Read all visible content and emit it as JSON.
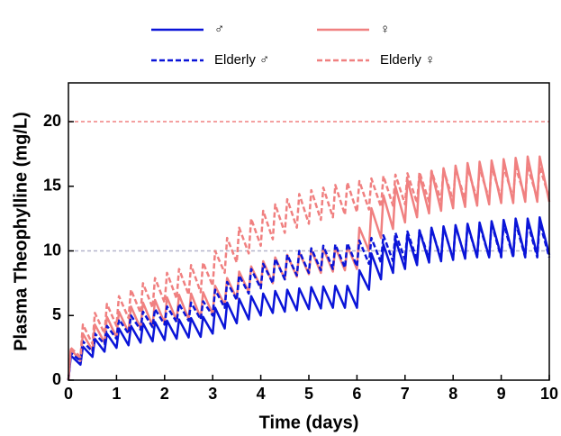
{
  "chart_data": {
    "type": "line",
    "xlabel": "Time (days)",
    "ylabel": "Plasma Theophylline (mg/L)",
    "xlim": [
      0,
      10
    ],
    "ylim": [
      0,
      23
    ],
    "xticks": [
      0,
      1,
      2,
      3,
      4,
      5,
      6,
      7,
      8,
      9,
      10
    ],
    "yticks": [
      0,
      5,
      10,
      15,
      20
    ],
    "reference_lines": [
      {
        "value": 20,
        "color": "#f08080"
      },
      {
        "value": 10,
        "color": "#b4b4cc"
      }
    ],
    "x": [
      0,
      0.05,
      0.25,
      0.3,
      0.5,
      0.55,
      0.75,
      0.8,
      1,
      1.05,
      1.25,
      1.3,
      1.5,
      1.55,
      1.75,
      1.8,
      2,
      2.05,
      2.25,
      2.3,
      2.5,
      2.55,
      2.75,
      2.8,
      3,
      3.05,
      3.25,
      3.3,
      3.5,
      3.55,
      3.75,
      3.8,
      4,
      4.05,
      4.25,
      4.3,
      4.5,
      4.55,
      4.75,
      4.8,
      5,
      5.05,
      5.25,
      5.3,
      5.5,
      5.55,
      5.75,
      5.8,
      6,
      6.05,
      6.25,
      6.3,
      6.5,
      6.55,
      6.75,
      6.8,
      7,
      7.05,
      7.25,
      7.3,
      7.5,
      7.55,
      7.75,
      7.8,
      8,
      8.05,
      8.25,
      8.3,
      8.5,
      8.55,
      8.75,
      8.8,
      9,
      9.05,
      9.25,
      9.3,
      9.5,
      9.55,
      9.75,
      9.8,
      10
    ],
    "series": [
      {
        "name": "♂",
        "color": "#0a14d8",
        "dash": false,
        "values": [
          0,
          1.9,
          1.2,
          2.6,
          1.8,
          3.2,
          2.2,
          3.6,
          2.5,
          4.0,
          2.7,
          4.2,
          2.9,
          4.4,
          3.0,
          4.5,
          3.1,
          4.6,
          3.2,
          4.7,
          3.3,
          4.8,
          3.35,
          4.9,
          3.6,
          5.6,
          4.0,
          6.0,
          4.4,
          6.3,
          4.7,
          6.5,
          5.0,
          6.7,
          5.2,
          6.9,
          5.3,
          7.0,
          5.4,
          7.1,
          5.5,
          7.2,
          5.55,
          7.25,
          5.6,
          7.3,
          5.6,
          7.3,
          5.6,
          8.5,
          7.0,
          9.8,
          7.8,
          10.5,
          8.3,
          10.9,
          8.6,
          11.3,
          8.9,
          11.6,
          9.1,
          11.8,
          9.2,
          11.9,
          9.3,
          12.0,
          9.4,
          12.1,
          9.5,
          12.2,
          9.5,
          12.3,
          9.6,
          12.4,
          9.6,
          12.5,
          9.6,
          12.5,
          9.7,
          12.6,
          9.7
        ]
      },
      {
        "name": "♀",
        "color": "#f08080",
        "dash": false,
        "values": [
          0,
          2.4,
          1.5,
          3.6,
          2.3,
          4.3,
          2.9,
          4.9,
          3.3,
          5.3,
          3.7,
          5.7,
          4.0,
          6.0,
          4.2,
          6.2,
          4.4,
          6.4,
          4.6,
          6.6,
          4.7,
          6.7,
          4.8,
          6.8,
          5.1,
          7.3,
          5.8,
          7.9,
          6.3,
          8.4,
          6.8,
          8.8,
          7.2,
          9.2,
          7.5,
          9.5,
          7.8,
          9.7,
          8.0,
          9.9,
          8.2,
          10.1,
          8.3,
          10.2,
          8.4,
          10.3,
          8.5,
          10.4,
          8.6,
          11.8,
          10.0,
          13.3,
          11.0,
          14.3,
          11.7,
          15.0,
          12.2,
          15.5,
          12.6,
          15.9,
          12.9,
          16.2,
          13.1,
          16.4,
          13.3,
          16.6,
          13.4,
          16.8,
          13.5,
          16.9,
          13.6,
          17.0,
          13.7,
          17.1,
          13.7,
          17.2,
          13.8,
          17.3,
          13.8,
          17.3,
          13.8
        ]
      },
      {
        "name": "Elderly ♂",
        "color": "#0a14d8",
        "dash": true,
        "values": [
          0,
          2.1,
          1.5,
          3.0,
          2.2,
          3.6,
          2.8,
          4.2,
          3.2,
          4.7,
          3.6,
          5.0,
          3.9,
          5.3,
          4.1,
          5.5,
          4.3,
          5.7,
          4.5,
          5.9,
          4.6,
          6.0,
          4.7,
          6.1,
          5.0,
          7.0,
          5.6,
          7.6,
          6.2,
          8.1,
          6.7,
          8.6,
          7.1,
          9.0,
          7.5,
          9.4,
          7.8,
          9.7,
          8.1,
          10.0,
          8.3,
          10.2,
          8.5,
          10.4,
          8.6,
          10.5,
          8.7,
          10.6,
          8.8,
          10.8,
          9.0,
          11.0,
          9.1,
          11.2,
          9.2,
          11.4,
          9.3,
          11.5,
          9.3,
          11.6,
          9.4,
          11.7,
          9.4,
          11.8,
          9.4,
          11.9,
          9.5,
          12.0,
          9.5,
          12.0,
          9.5,
          12.1,
          9.5,
          12.1,
          9.5,
          12.2,
          9.5,
          12.2,
          9.5,
          12.2,
          9.5
        ]
      },
      {
        "name": "Elderly ♀",
        "color": "#f08080",
        "dash": true,
        "values": [
          0,
          2.5,
          1.8,
          4.3,
          2.8,
          5.2,
          3.6,
          5.9,
          4.2,
          6.5,
          4.8,
          7.0,
          5.2,
          7.5,
          5.6,
          7.9,
          6.0,
          8.3,
          6.3,
          8.6,
          6.6,
          8.9,
          6.8,
          9.1,
          7.3,
          10.0,
          8.3,
          11.0,
          9.1,
          11.8,
          9.8,
          12.5,
          10.4,
          13.1,
          10.9,
          13.6,
          11.4,
          14.0,
          11.8,
          14.4,
          12.1,
          14.7,
          12.4,
          14.9,
          12.6,
          15.1,
          12.8,
          15.3,
          13.0,
          15.4,
          13.2,
          15.6,
          13.4,
          15.8,
          13.5,
          15.9,
          13.6,
          16.0,
          13.7,
          16.1,
          13.8,
          16.2,
          13.9,
          16.3,
          13.9,
          16.3,
          14.0,
          16.4,
          14.0,
          16.4,
          14.0,
          16.5,
          14.1,
          16.5,
          14.1,
          16.5,
          14.1,
          16.5,
          14.1,
          16.5,
          14.1
        ]
      }
    ]
  }
}
